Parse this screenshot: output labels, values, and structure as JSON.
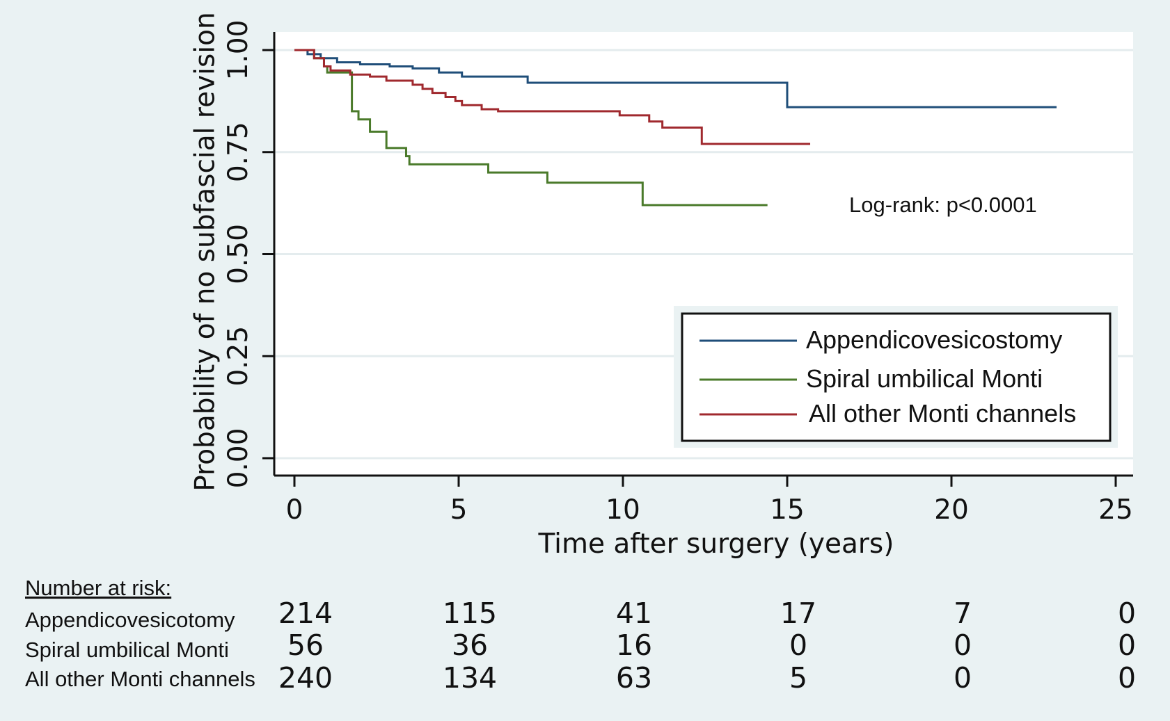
{
  "chart_data": {
    "type": "line",
    "subtype": "kaplan-meier step",
    "ylabel": "Probability of no subfascial revision",
    "xlabel": "Time after surgery (years)",
    "xlim": [
      0,
      25
    ],
    "ylim": [
      0,
      1
    ],
    "xticks": [
      0,
      5,
      10,
      15,
      20,
      25
    ],
    "yticks": [
      0,
      0.25,
      0.5,
      0.75,
      1
    ],
    "xtick_labels": [
      "0",
      "5",
      "10",
      "15",
      "20",
      "25"
    ],
    "ytick_labels": [
      "0.00",
      "0.25",
      "0.50",
      "0.75",
      "1.00"
    ],
    "grid": "horizontal",
    "annotation": "Log-rank: p<0.0001",
    "legend_position": "lower-right",
    "series": [
      {
        "name": "Appendicovesicostomy",
        "color": "#1f4e79",
        "steps": [
          [
            0,
            1.0
          ],
          [
            0.4,
            0.99
          ],
          [
            0.8,
            0.98
          ],
          [
            1.3,
            0.97
          ],
          [
            2.0,
            0.965
          ],
          [
            2.9,
            0.96
          ],
          [
            3.6,
            0.955
          ],
          [
            4.4,
            0.945
          ],
          [
            5.1,
            0.935
          ],
          [
            7.1,
            0.92
          ],
          [
            15.0,
            0.92
          ],
          [
            15.0,
            0.86
          ],
          [
            23.2,
            0.86
          ]
        ]
      },
      {
        "name": "Spiral umbilical Monti",
        "color": "#4a7a2a",
        "steps": [
          [
            0,
            1.0
          ],
          [
            0.6,
            0.98
          ],
          [
            0.9,
            0.96
          ],
          [
            1.0,
            0.945
          ],
          [
            1.7,
            0.945
          ],
          [
            1.75,
            0.85
          ],
          [
            1.95,
            0.83
          ],
          [
            2.3,
            0.8
          ],
          [
            2.8,
            0.76
          ],
          [
            3.4,
            0.74
          ],
          [
            3.5,
            0.72
          ],
          [
            5.9,
            0.7
          ],
          [
            7.7,
            0.675
          ],
          [
            10.6,
            0.675
          ],
          [
            10.6,
            0.62
          ],
          [
            14.4,
            0.62
          ]
        ]
      },
      {
        "name": "All other Monti channels",
        "color": "#a0292e",
        "steps": [
          [
            0,
            1.0
          ],
          [
            0.6,
            0.98
          ],
          [
            0.9,
            0.96
          ],
          [
            1.1,
            0.95
          ],
          [
            1.7,
            0.94
          ],
          [
            2.3,
            0.935
          ],
          [
            2.8,
            0.925
          ],
          [
            3.6,
            0.915
          ],
          [
            3.9,
            0.905
          ],
          [
            4.2,
            0.895
          ],
          [
            4.6,
            0.885
          ],
          [
            4.9,
            0.875
          ],
          [
            5.1,
            0.865
          ],
          [
            5.7,
            0.855
          ],
          [
            6.2,
            0.85
          ],
          [
            9.9,
            0.84
          ],
          [
            10.8,
            0.825
          ],
          [
            11.2,
            0.81
          ],
          [
            12.4,
            0.77
          ],
          [
            15.7,
            0.77
          ]
        ]
      }
    ]
  },
  "risk_table": {
    "title": "Number at risk:",
    "rows": [
      {
        "label": "Appendicovesicotomy",
        "values": [
          "214",
          "115",
          "41",
          "17",
          "7",
          "0"
        ]
      },
      {
        "label": "Spiral umbilical Monti",
        "values": [
          "56",
          "36",
          "16",
          "0",
          "0",
          "0"
        ]
      },
      {
        "label": "All other Monti channels",
        "values": [
          "240",
          "134",
          "63",
          "5",
          "0",
          "0"
        ]
      }
    ]
  }
}
